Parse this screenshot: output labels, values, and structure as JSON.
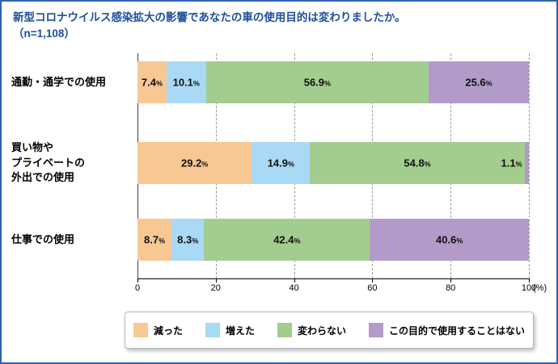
{
  "title": "新型コロナウイルス感染拡大の影響であなたの車の使用目的は変わりましたか。",
  "subtitle": "（n=1,108）",
  "colors": {
    "accent_blue": "#1c4f9c",
    "frame_border_blue": "#2f63b0"
  },
  "chart_data": {
    "type": "bar",
    "stacked": true,
    "orientation": "horizontal",
    "title": "新型コロナウイルス感染拡大の影響であなたの車の使用目的は変わりましたか。",
    "subtitle": "（n=1,108）",
    "categories": [
      "通勤・通学での使用",
      "買い物や\nプライベートの\n外出での使用",
      "仕事での使用"
    ],
    "series": [
      {
        "name": "減った",
        "color": "#f7c894",
        "values": [
          7.4,
          29.2,
          8.7
        ]
      },
      {
        "name": "増えた",
        "color": "#a9d9f5",
        "values": [
          10.1,
          14.9,
          8.3
        ]
      },
      {
        "name": "変わらない",
        "color": "#a3cd8e",
        "values": [
          56.9,
          54.8,
          42.4
        ]
      },
      {
        "name": "この目的で使用することはない",
        "color": "#b29bc9",
        "values": [
          25.6,
          1.1,
          40.6
        ]
      }
    ],
    "xlim": [
      0,
      100
    ],
    "xticks": [
      0,
      20,
      40,
      60,
      80,
      100
    ],
    "unit_label": "(%)",
    "grid": "dashed-vertical",
    "legend_position": "bottom"
  }
}
